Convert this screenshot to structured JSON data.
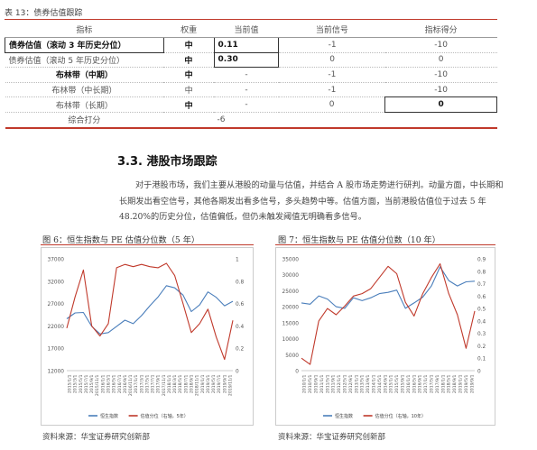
{
  "table": {
    "title": "表 13：债券估值跟踪",
    "headers": [
      "指标",
      "权重",
      "当前值",
      "当前信号",
      "指标得分"
    ],
    "rows": [
      {
        "name": "债券估值（滚动 3 年历史分位）",
        "weight": "中",
        "value": "0.11",
        "signal": "-1",
        "score": "-10",
        "bold": true
      },
      {
        "name": "债券估值（滚动 5 年历史分位）",
        "weight": "中",
        "value": "0.30",
        "signal": "0",
        "score": "0",
        "bold": false
      },
      {
        "name": "布林带（中期）",
        "weight": "中",
        "value": "-",
        "signal": "-1",
        "score": "-10",
        "bold": true
      },
      {
        "name": "布林带（中长期）",
        "weight": "中",
        "value": "-",
        "signal": "-1",
        "score": "-10",
        "bold": false
      },
      {
        "name": "布林带（长期）",
        "weight": "中",
        "value": "-",
        "signal": "0",
        "score": "0",
        "bold": false
      }
    ],
    "total_label": "综合打分",
    "total_value": "-6"
  },
  "section": {
    "number": "3.3.",
    "title": "港股市场跟踪",
    "paragraph": "对于港股市场，我们主要从港股的动量与估值，并结合 A 股市场走势进行研判。动量方面，中长期和长期发出看空信号，其他各期发出看多信号，多头趋势中等。估值方面，当前港股估值位于过去 5 年 48.20%的历史分位，估值偏低，但仍未触发阈值无明确看多信号。"
  },
  "figures": [
    {
      "title": "图 6：恒生指数与 PE 估值分位数（5 年）",
      "source": "资料来源：华宝证券研究创新部"
    },
    {
      "title": "图 7：恒生指数与 PE 估值分位数（10 年）",
      "source": "资料来源：华宝证券研究创新部"
    }
  ],
  "chart_data": [
    {
      "type": "line",
      "title": "",
      "x": [
        "2015/1/1",
        "2015/4/1",
        "2015/7/1",
        "2015/10/1",
        "2016/1/1",
        "2016/4/1",
        "2016/7/1",
        "2016/10/1",
        "2017/1/1",
        "2017/4/1",
        "2017/7/1",
        "2017/10/1",
        "2018/1/1",
        "2018/4/1",
        "2018/7/1",
        "2018/10/1",
        "2019/1/1",
        "2019/4/1",
        "2019/7/1",
        "2019/10/1",
        "2020/1/1"
      ],
      "xticks": [
        "2015/1/1",
        "2015/3/1",
        "2015/5/1",
        "2015/7/1",
        "2015/9/1",
        "2015/11/1",
        "2016/1/1",
        "2016/3/1",
        "2016/5/1",
        "2016/7/1",
        "2016/9/1",
        "2016/11/1",
        "2017/1/1",
        "2017/3/1",
        "2017/5/1",
        "2017/7/1",
        "2017/9/1",
        "2017/11/1",
        "2018/1/1",
        "2018/3/1",
        "2018/5/1",
        "2018/7/1",
        "2018/9/1",
        "2018/11/1",
        "2019/1/1",
        "2019/3/1",
        "2019/5/1",
        "2019/7/1",
        "2019/9/1",
        "2019/11/1"
      ],
      "ylim": [
        12000,
        37000
      ],
      "yticks": [
        12000,
        17000,
        22000,
        27000,
        32000,
        37000
      ],
      "y2lim": [
        0,
        1
      ],
      "y2ticks": [
        0,
        0.2,
        0.4,
        0.6,
        0.8,
        1
      ],
      "series": [
        {
          "name": "恒生指数",
          "axis": "left",
          "color": "#4a7ebb",
          "values": [
            23600,
            24900,
            25000,
            21900,
            20200,
            20500,
            21900,
            23300,
            22500,
            24300,
            26500,
            28500,
            31000,
            30500,
            28900,
            25200,
            26700,
            29600,
            28400,
            26500,
            27500
          ]
        },
        {
          "name": "估值分位（右轴，5年）",
          "axis": "right",
          "color": "#c0392b",
          "values": [
            0.38,
            0.66,
            0.9,
            0.4,
            0.31,
            0.42,
            0.92,
            0.95,
            0.93,
            0.95,
            0.93,
            0.92,
            0.96,
            0.85,
            0.6,
            0.34,
            0.42,
            0.55,
            0.3,
            0.1,
            0.45
          ]
        }
      ]
    },
    {
      "type": "line",
      "title": "",
      "x": [
        "2010/1/1",
        "2010/7/1",
        "2011/1/1",
        "2011/7/1",
        "2012/1/1",
        "2012/7/1",
        "2013/1/1",
        "2013/7/1",
        "2014/1/1",
        "2014/7/1",
        "2015/1/1",
        "2015/7/1",
        "2016/1/1",
        "2016/7/1",
        "2017/1/1",
        "2017/7/1",
        "2018/1/1",
        "2018/7/1",
        "2019/1/1",
        "2019/7/1",
        "2020/1/1"
      ],
      "xticks": [
        "2010/1/1",
        "2010/5/1",
        "2010/9/1",
        "2011/1/1",
        "2011/5/1",
        "2011/9/1",
        "2012/1/1",
        "2012/5/1",
        "2012/9/1",
        "2013/1/1",
        "2013/5/1",
        "2013/9/1",
        "2014/1/1",
        "2014/5/1",
        "2014/9/1",
        "2015/1/1",
        "2015/5/1",
        "2015/9/1",
        "2016/1/1",
        "2016/5/1",
        "2016/9/1",
        "2017/1/1",
        "2017/5/1",
        "2017/9/1",
        "2018/1/1",
        "2018/5/1",
        "2018/9/1",
        "2019/1/1",
        "2019/5/1",
        "2019/9/1"
      ],
      "ylim": [
        0,
        35000
      ],
      "yticks": [
        0,
        5000,
        10000,
        15000,
        20000,
        25000,
        30000,
        35000
      ],
      "y2lim": [
        0,
        0.9
      ],
      "y2ticks": [
        0,
        0.1,
        0.2,
        0.3,
        0.4,
        0.5,
        0.6,
        0.7,
        0.8,
        0.9
      ],
      "series": [
        {
          "name": "恒生指数",
          "axis": "left",
          "color": "#4a7ebb",
          "values": [
            21200,
            20800,
            23400,
            22400,
            20000,
            19500,
            22800,
            21900,
            22800,
            24100,
            24500,
            25200,
            19500,
            21200,
            23000,
            26500,
            32500,
            28200,
            26500,
            27800,
            28000
          ]
        },
        {
          "name": "估值分位（右轴，10年）",
          "axis": "right",
          "color": "#c0392b",
          "values": [
            0.1,
            0.05,
            0.4,
            0.5,
            0.45,
            0.52,
            0.6,
            0.62,
            0.66,
            0.75,
            0.84,
            0.78,
            0.55,
            0.44,
            0.62,
            0.75,
            0.86,
            0.62,
            0.45,
            0.18,
            0.48
          ]
        }
      ]
    }
  ]
}
